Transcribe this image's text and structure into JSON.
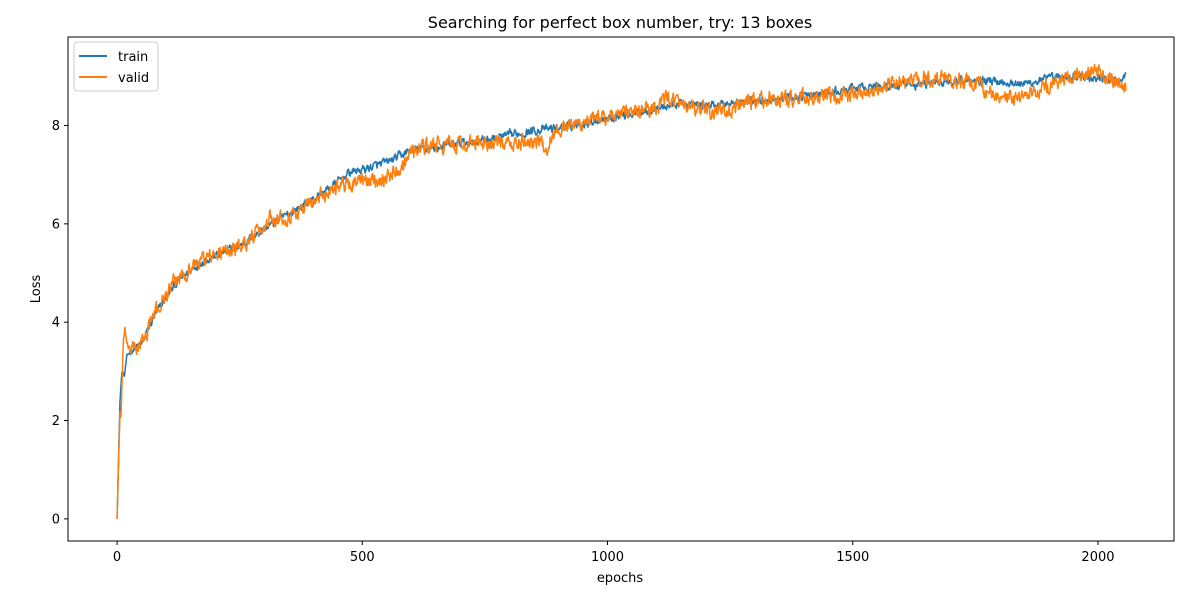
{
  "chart_data": {
    "type": "line",
    "title": "Searching for perfect box number, try: 13 boxes",
    "xlabel": "epochs",
    "ylabel": "Loss",
    "xlim": [
      -100,
      2155
    ],
    "ylim": [
      -0.45,
      9.8
    ],
    "xticks": [
      0,
      500,
      1000,
      1500,
      2000
    ],
    "yticks": [
      0,
      2,
      4,
      6,
      8
    ],
    "grid": false,
    "legend_position": "top-left",
    "series": [
      {
        "name": "train",
        "color": "#1f77b4",
        "noise": 0.07,
        "points": [
          [
            0,
            0.0
          ],
          [
            3,
            1.2
          ],
          [
            6,
            2.4
          ],
          [
            10,
            3.0
          ],
          [
            15,
            2.9
          ],
          [
            20,
            3.3
          ],
          [
            30,
            3.45
          ],
          [
            50,
            3.55
          ],
          [
            75,
            4.1
          ],
          [
            100,
            4.5
          ],
          [
            125,
            4.85
          ],
          [
            150,
            5.05
          ],
          [
            175,
            5.25
          ],
          [
            200,
            5.35
          ],
          [
            250,
            5.55
          ],
          [
            300,
            5.9
          ],
          [
            350,
            6.2
          ],
          [
            400,
            6.5
          ],
          [
            450,
            6.85
          ],
          [
            475,
            7.05
          ],
          [
            500,
            7.1
          ],
          [
            550,
            7.25
          ],
          [
            600,
            7.5
          ],
          [
            650,
            7.55
          ],
          [
            700,
            7.65
          ],
          [
            750,
            7.7
          ],
          [
            800,
            7.8
          ],
          [
            850,
            7.9
          ],
          [
            900,
            7.95
          ],
          [
            950,
            8.05
          ],
          [
            1000,
            8.15
          ],
          [
            1050,
            8.25
          ],
          [
            1100,
            8.35
          ],
          [
            1150,
            8.45
          ],
          [
            1200,
            8.4
          ],
          [
            1250,
            8.45
          ],
          [
            1300,
            8.5
          ],
          [
            1350,
            8.55
          ],
          [
            1400,
            8.6
          ],
          [
            1450,
            8.65
          ],
          [
            1500,
            8.75
          ],
          [
            1550,
            8.8
          ],
          [
            1600,
            8.8
          ],
          [
            1650,
            8.85
          ],
          [
            1700,
            8.9
          ],
          [
            1750,
            8.95
          ],
          [
            1800,
            8.9
          ],
          [
            1850,
            8.85
          ],
          [
            1900,
            8.95
          ],
          [
            1950,
            9.0
          ],
          [
            2000,
            8.95
          ],
          [
            2050,
            8.9
          ],
          [
            2057,
            9.05
          ]
        ]
      },
      {
        "name": "valid",
        "color": "#ff7f0e",
        "noise": 0.13,
        "points": [
          [
            0,
            0.0
          ],
          [
            3,
            1.1
          ],
          [
            6,
            2.2
          ],
          [
            8,
            2.05
          ],
          [
            10,
            2.7
          ],
          [
            13,
            3.6
          ],
          [
            16,
            3.9
          ],
          [
            20,
            3.5
          ],
          [
            30,
            3.45
          ],
          [
            50,
            3.55
          ],
          [
            75,
            4.15
          ],
          [
            100,
            4.55
          ],
          [
            125,
            4.9
          ],
          [
            150,
            5.1
          ],
          [
            175,
            5.3
          ],
          [
            200,
            5.35
          ],
          [
            250,
            5.55
          ],
          [
            300,
            5.9
          ],
          [
            310,
            6.15
          ],
          [
            350,
            6.15
          ],
          [
            400,
            6.45
          ],
          [
            450,
            6.8
          ],
          [
            500,
            6.85
          ],
          [
            550,
            6.95
          ],
          [
            580,
            7.2
          ],
          [
            600,
            7.5
          ],
          [
            650,
            7.6
          ],
          [
            700,
            7.6
          ],
          [
            750,
            7.65
          ],
          [
            800,
            7.6
          ],
          [
            850,
            7.7
          ],
          [
            875,
            7.55
          ],
          [
            900,
            7.95
          ],
          [
            950,
            8.05
          ],
          [
            1000,
            8.2
          ],
          [
            1050,
            8.25
          ],
          [
            1100,
            8.4
          ],
          [
            1130,
            8.6
          ],
          [
            1150,
            8.35
          ],
          [
            1200,
            8.3
          ],
          [
            1250,
            8.3
          ],
          [
            1300,
            8.5
          ],
          [
            1350,
            8.55
          ],
          [
            1400,
            8.55
          ],
          [
            1450,
            8.55
          ],
          [
            1500,
            8.65
          ],
          [
            1550,
            8.75
          ],
          [
            1600,
            8.9
          ],
          [
            1650,
            8.95
          ],
          [
            1700,
            8.95
          ],
          [
            1750,
            8.85
          ],
          [
            1800,
            8.55
          ],
          [
            1850,
            8.55
          ],
          [
            1900,
            8.8
          ],
          [
            1950,
            9.0
          ],
          [
            2000,
            9.1
          ],
          [
            2030,
            8.9
          ],
          [
            2057,
            8.7
          ]
        ]
      }
    ]
  }
}
